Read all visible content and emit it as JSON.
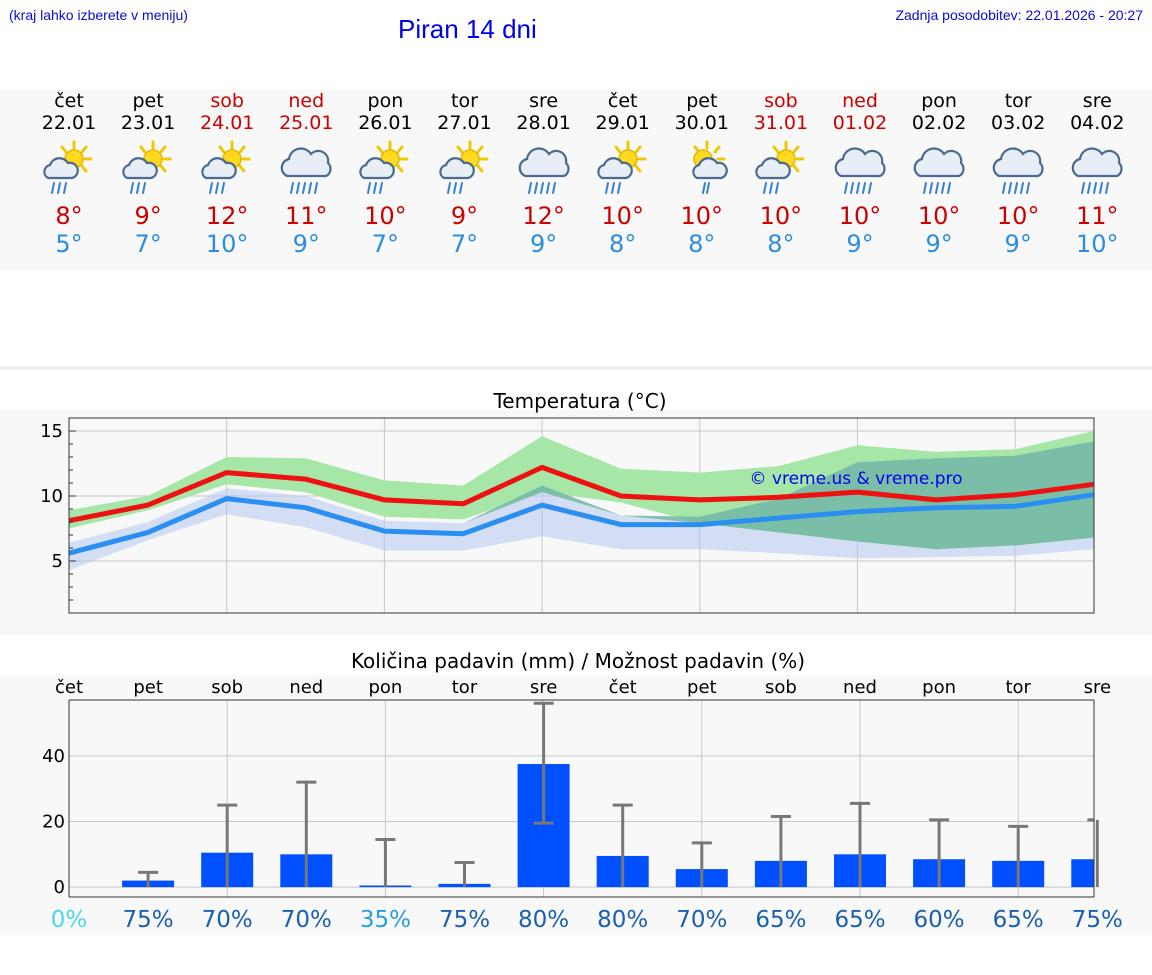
{
  "header": {
    "note_left": "(kraj lahko izberete v meniju)",
    "title": "Piran 14 dni",
    "update": "Zadnja posodobitev: 22.01.2026 - 20:27"
  },
  "days": [
    {
      "name": "čet",
      "date": "22.01",
      "icon": "sun-cloud-rain-icon",
      "max": "8°",
      "min": "5°",
      "weekend": false
    },
    {
      "name": "pet",
      "date": "23.01",
      "icon": "sun-cloud-rain-icon",
      "max": "9°",
      "min": "7°",
      "weekend": false
    },
    {
      "name": "sob",
      "date": "24.01",
      "icon": "sun-cloud-rain-icon",
      "max": "12°",
      "min": "10°",
      "weekend": true
    },
    {
      "name": "ned",
      "date": "25.01",
      "icon": "cloud-rain-icon",
      "max": "11°",
      "min": "9°",
      "weekend": true
    },
    {
      "name": "pon",
      "date": "26.01",
      "icon": "sun-cloud-rain-icon",
      "max": "10°",
      "min": "7°",
      "weekend": false
    },
    {
      "name": "tor",
      "date": "27.01",
      "icon": "sun-cloud-rain-icon",
      "max": "9°",
      "min": "7°",
      "weekend": false
    },
    {
      "name": "sre",
      "date": "28.01",
      "icon": "cloud-rain-icon",
      "max": "12°",
      "min": "9°",
      "weekend": false
    },
    {
      "name": "čet",
      "date": "29.01",
      "icon": "sun-cloud-rain-icon",
      "max": "10°",
      "min": "8°",
      "weekend": false
    },
    {
      "name": "pet",
      "date": "30.01",
      "icon": "sun-cloud-drizzle-icon",
      "max": "10°",
      "min": "8°",
      "weekend": false
    },
    {
      "name": "sob",
      "date": "31.01",
      "icon": "sun-cloud-rain-icon",
      "max": "10°",
      "min": "8°",
      "weekend": true
    },
    {
      "name": "ned",
      "date": "01.02",
      "icon": "cloud-rain-icon",
      "max": "10°",
      "min": "9°",
      "weekend": true
    },
    {
      "name": "pon",
      "date": "02.02",
      "icon": "cloud-rain-icon",
      "max": "10°",
      "min": "9°",
      "weekend": false
    },
    {
      "name": "tor",
      "date": "03.02",
      "icon": "cloud-rain-icon",
      "max": "10°",
      "min": "9°",
      "weekend": false
    },
    {
      "name": "sre",
      "date": "04.02",
      "icon": "cloud-rain-icon",
      "max": "11°",
      "min": "10°",
      "weekend": false
    }
  ],
  "chart_data": [
    {
      "type": "line",
      "title": "Temperatura (°C)",
      "watermark": "© vreme.us & vreme.pro",
      "ylim": [
        1,
        16
      ],
      "yticks": [
        5,
        10,
        15
      ],
      "x": [
        "22.01",
        "23.01",
        "24.01",
        "25.01",
        "26.01",
        "27.01",
        "28.01",
        "29.01",
        "30.01",
        "31.01",
        "01.02",
        "02.02",
        "03.02",
        "04.02"
      ],
      "series": [
        {
          "name": "max",
          "color": "#ee1111",
          "values": [
            8.1,
            9.3,
            11.8,
            11.3,
            9.7,
            9.4,
            12.2,
            10.0,
            9.7,
            9.9,
            10.3,
            9.7,
            10.1,
            10.9
          ]
        },
        {
          "name": "min",
          "color": "#2a8ff0",
          "values": [
            5.6,
            7.2,
            9.8,
            9.1,
            7.3,
            7.1,
            9.3,
            7.8,
            7.8,
            8.3,
            8.8,
            9.1,
            9.2,
            10.1
          ]
        }
      ],
      "bands": [
        {
          "name": "max_range",
          "color": "#a6e6a6",
          "upper": [
            8.9,
            10.0,
            13.0,
            12.9,
            11.2,
            10.8,
            14.6,
            12.1,
            11.8,
            12.3,
            13.9,
            13.4,
            13.6,
            15.0
          ],
          "lower": [
            7.5,
            8.9,
            10.9,
            10.3,
            8.4,
            8.2,
            10.3,
            9.5,
            7.9,
            7.2,
            6.5,
            5.9,
            6.2,
            6.8
          ]
        },
        {
          "name": "min_range",
          "color": "#b4c8f2",
          "upper": [
            6.4,
            8.0,
            10.6,
            10.0,
            8.1,
            7.9,
            10.8,
            8.5,
            8.4,
            9.8,
            12.6,
            12.9,
            13.1,
            14.2
          ],
          "lower": [
            4.3,
            6.6,
            8.6,
            7.6,
            5.8,
            5.8,
            6.9,
            5.9,
            5.9,
            5.6,
            5.2,
            5.3,
            5.4,
            5.9
          ]
        }
      ]
    },
    {
      "type": "bar",
      "title": "Količina padavin (mm) / Možnost padavin (%)",
      "ylim": [
        -3,
        57
      ],
      "yticks": [
        0,
        20,
        40
      ],
      "categories": [
        "čet",
        "pet",
        "sob",
        "ned",
        "pon",
        "tor",
        "sre",
        "čet",
        "pet",
        "sob",
        "ned",
        "pon",
        "tor",
        "sre"
      ],
      "values": [
        0,
        2,
        10.5,
        10,
        0.5,
        1,
        37.5,
        9.5,
        5.5,
        8,
        10,
        8.5,
        8,
        8.5
      ],
      "error_high": [
        0,
        4.5,
        25,
        32,
        14.5,
        7.5,
        56,
        25,
        13.5,
        21.5,
        25.5,
        20.5,
        18.5,
        20.5
      ],
      "error_low": [
        0,
        0,
        0,
        0,
        0,
        0,
        19.5,
        0,
        0,
        0,
        0,
        0,
        0,
        0
      ],
      "bar_color": "#0050ff",
      "probability": [
        "0%",
        "75%",
        "70%",
        "70%",
        "35%",
        "75%",
        "80%",
        "80%",
        "70%",
        "65%",
        "65%",
        "60%",
        "65%",
        "75%"
      ]
    }
  ]
}
